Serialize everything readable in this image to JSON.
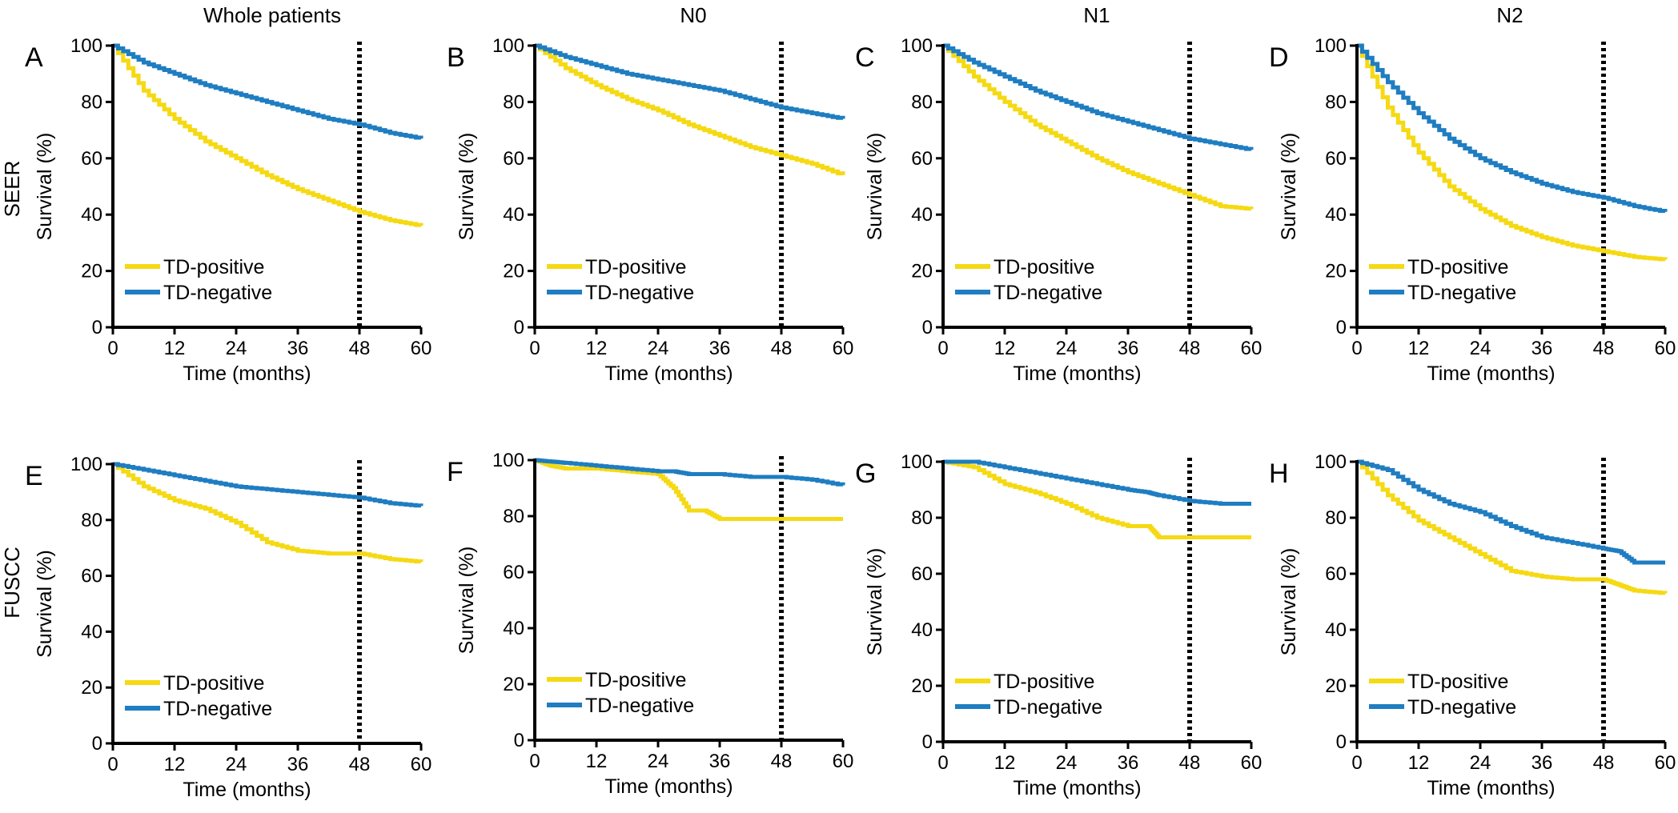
{
  "column_titles": [
    "Whole patients",
    "N0",
    "N1",
    "N2"
  ],
  "row_labels": [
    "SEER",
    "FUSCC"
  ],
  "colors": {
    "TD-positive": "#f5d913",
    "TD-negative": "#1f7dc1",
    "reference_line": "#000000"
  },
  "chart_data": [
    {
      "type": "line",
      "panel": "A",
      "title": "",
      "xlabel": "Time (months)",
      "ylabel": "Survival (%)",
      "xlim": [
        0,
        60
      ],
      "ylim": [
        0,
        100
      ],
      "xticks": [
        0,
        12,
        24,
        36,
        48,
        60
      ],
      "yticks": [
        0,
        20,
        40,
        60,
        80,
        100
      ],
      "grid": false,
      "legend_position": "bottom-left",
      "reference_line_x": 48,
      "x": [
        0,
        6,
        12,
        18,
        24,
        30,
        36,
        42,
        48,
        54,
        60
      ],
      "series": [
        {
          "name": "TD-positive",
          "values": [
            100,
            84,
            74,
            66,
            60,
            54,
            49,
            45,
            41,
            38,
            36
          ]
        },
        {
          "name": "TD-negative",
          "values": [
            100,
            94,
            90,
            86,
            83,
            80,
            77,
            74,
            72,
            69,
            67
          ]
        }
      ]
    },
    {
      "type": "line",
      "panel": "B",
      "title": "",
      "xlabel": "Time (months)",
      "ylabel": "Survival (%)",
      "xlim": [
        0,
        60
      ],
      "ylim": [
        0,
        100
      ],
      "xticks": [
        0,
        12,
        24,
        36,
        48,
        60
      ],
      "yticks": [
        0,
        20,
        40,
        60,
        80,
        100
      ],
      "grid": false,
      "legend_position": "bottom-left",
      "reference_line_x": 48,
      "x": [
        0,
        6,
        12,
        18,
        24,
        30,
        36,
        42,
        48,
        54,
        60
      ],
      "series": [
        {
          "name": "TD-positive",
          "values": [
            100,
            92,
            86,
            81,
            77,
            72,
            68,
            64,
            61,
            58,
            54
          ]
        },
        {
          "name": "TD-negative",
          "values": [
            100,
            96,
            93,
            90,
            88,
            86,
            84,
            81,
            78,
            76,
            74
          ]
        }
      ]
    },
    {
      "type": "line",
      "panel": "C",
      "title": "",
      "xlabel": "Time (months)",
      "ylabel": "Survival (%)",
      "xlim": [
        0,
        60
      ],
      "ylim": [
        0,
        100
      ],
      "xticks": [
        0,
        12,
        24,
        36,
        48,
        60
      ],
      "yticks": [
        0,
        20,
        40,
        60,
        80,
        100
      ],
      "grid": false,
      "legend_position": "bottom-left",
      "reference_line_x": 48,
      "x": [
        0,
        6,
        12,
        18,
        24,
        30,
        36,
        42,
        48,
        54,
        60
      ],
      "series": [
        {
          "name": "TD-positive",
          "values": [
            100,
            89,
            80,
            72,
            66,
            60,
            55,
            51,
            47,
            43,
            42
          ]
        },
        {
          "name": "TD-negative",
          "values": [
            100,
            94,
            89,
            84,
            80,
            76,
            73,
            70,
            67,
            65,
            63
          ]
        }
      ]
    },
    {
      "type": "line",
      "panel": "D",
      "title": "",
      "xlabel": "Time (months)",
      "ylabel": "Survival (%)",
      "xlim": [
        0,
        60
      ],
      "ylim": [
        0,
        100
      ],
      "xticks": [
        0,
        12,
        24,
        36,
        48,
        60
      ],
      "yticks": [
        0,
        20,
        40,
        60,
        80,
        100
      ],
      "grid": false,
      "legend_position": "bottom-left",
      "reference_line_x": 48,
      "x": [
        0,
        6,
        12,
        18,
        24,
        30,
        36,
        42,
        48,
        54,
        60
      ],
      "series": [
        {
          "name": "TD-positive",
          "values": [
            100,
            78,
            62,
            50,
            42,
            36,
            32,
            29,
            27,
            25,
            24
          ]
        },
        {
          "name": "TD-negative",
          "values": [
            100,
            87,
            76,
            67,
            60,
            55,
            51,
            48,
            46,
            43,
            41
          ]
        }
      ]
    },
    {
      "type": "line",
      "panel": "E",
      "title": "",
      "xlabel": "Time (months)",
      "ylabel": "Survival (%)",
      "xlim": [
        0,
        60
      ],
      "ylim": [
        0,
        100
      ],
      "xticks": [
        0,
        12,
        24,
        36,
        48,
        60
      ],
      "yticks": [
        0,
        20,
        40,
        60,
        80,
        100
      ],
      "grid": false,
      "legend_position": "bottom-left",
      "reference_line_x": 48,
      "x": [
        0,
        6,
        12,
        18,
        24,
        30,
        36,
        42,
        48,
        54,
        60
      ],
      "series": [
        {
          "name": "TD-positive",
          "values": [
            100,
            92,
            87,
            84,
            79,
            72,
            69,
            68,
            68,
            66,
            65
          ]
        },
        {
          "name": "TD-negative",
          "values": [
            100,
            98,
            96,
            94,
            92,
            91,
            90,
            89,
            88,
            86,
            85
          ]
        }
      ]
    },
    {
      "type": "line",
      "panel": "F",
      "title": "",
      "xlabel": "Time (months)",
      "ylabel": "Survival (%)",
      "xlim": [
        0,
        60
      ],
      "ylim": [
        0,
        100
      ],
      "xticks": [
        0,
        12,
        24,
        36,
        48,
        60
      ],
      "yticks": [
        0,
        20,
        40,
        60,
        80,
        100
      ],
      "grid": false,
      "legend_position": "bottom-left",
      "reference_line_x": 48,
      "x": [
        0,
        3,
        6,
        12,
        18,
        24,
        27,
        30,
        33,
        36,
        42,
        48,
        54,
        60
      ],
      "series": [
        {
          "name": "TD-positive",
          "values": [
            100,
            98,
            97,
            97,
            96,
            95,
            90,
            82,
            82,
            79,
            79,
            79,
            79,
            79
          ]
        },
        {
          "name": "TD-negative",
          "values": [
            100,
            99.5,
            99,
            98,
            97,
            96,
            96,
            95,
            95,
            95,
            94,
            94,
            93,
            91
          ]
        }
      ]
    },
    {
      "type": "line",
      "panel": "G",
      "title": "",
      "xlabel": "Time (months)",
      "ylabel": "Survival (%)",
      "xlim": [
        0,
        60
      ],
      "ylim": [
        0,
        100
      ],
      "xticks": [
        0,
        12,
        24,
        36,
        48,
        60
      ],
      "yticks": [
        0,
        20,
        40,
        60,
        80,
        100
      ],
      "grid": false,
      "legend_position": "bottom-left",
      "reference_line_x": 48,
      "x": [
        0,
        6,
        12,
        18,
        24,
        30,
        36,
        40,
        42,
        48,
        54,
        60
      ],
      "series": [
        {
          "name": "TD-positive",
          "values": [
            100,
            98,
            92,
            89,
            85,
            80,
            77,
            77,
            73,
            73,
            73,
            73
          ]
        },
        {
          "name": "TD-negative",
          "values": [
            100,
            100,
            98,
            96,
            94,
            92,
            90,
            89,
            88,
            86,
            85,
            85
          ]
        }
      ]
    },
    {
      "type": "line",
      "panel": "H",
      "title": "",
      "xlabel": "Time (months)",
      "ylabel": "Survival (%)",
      "xlim": [
        0,
        60
      ],
      "ylim": [
        0,
        100
      ],
      "xticks": [
        0,
        12,
        24,
        36,
        48,
        60
      ],
      "yticks": [
        0,
        20,
        40,
        60,
        80,
        100
      ],
      "grid": false,
      "legend_position": "bottom-left",
      "reference_line_x": 48,
      "x": [
        0,
        6,
        12,
        18,
        24,
        30,
        36,
        42,
        48,
        51,
        54,
        60
      ],
      "series": [
        {
          "name": "TD-positive",
          "values": [
            100,
            88,
            79,
            73,
            67,
            61,
            59,
            58,
            58,
            56,
            54,
            53
          ]
        },
        {
          "name": "TD-negative",
          "values": [
            100,
            97,
            90,
            85,
            82,
            77,
            73,
            71,
            69,
            68,
            64,
            64
          ]
        }
      ]
    }
  ]
}
